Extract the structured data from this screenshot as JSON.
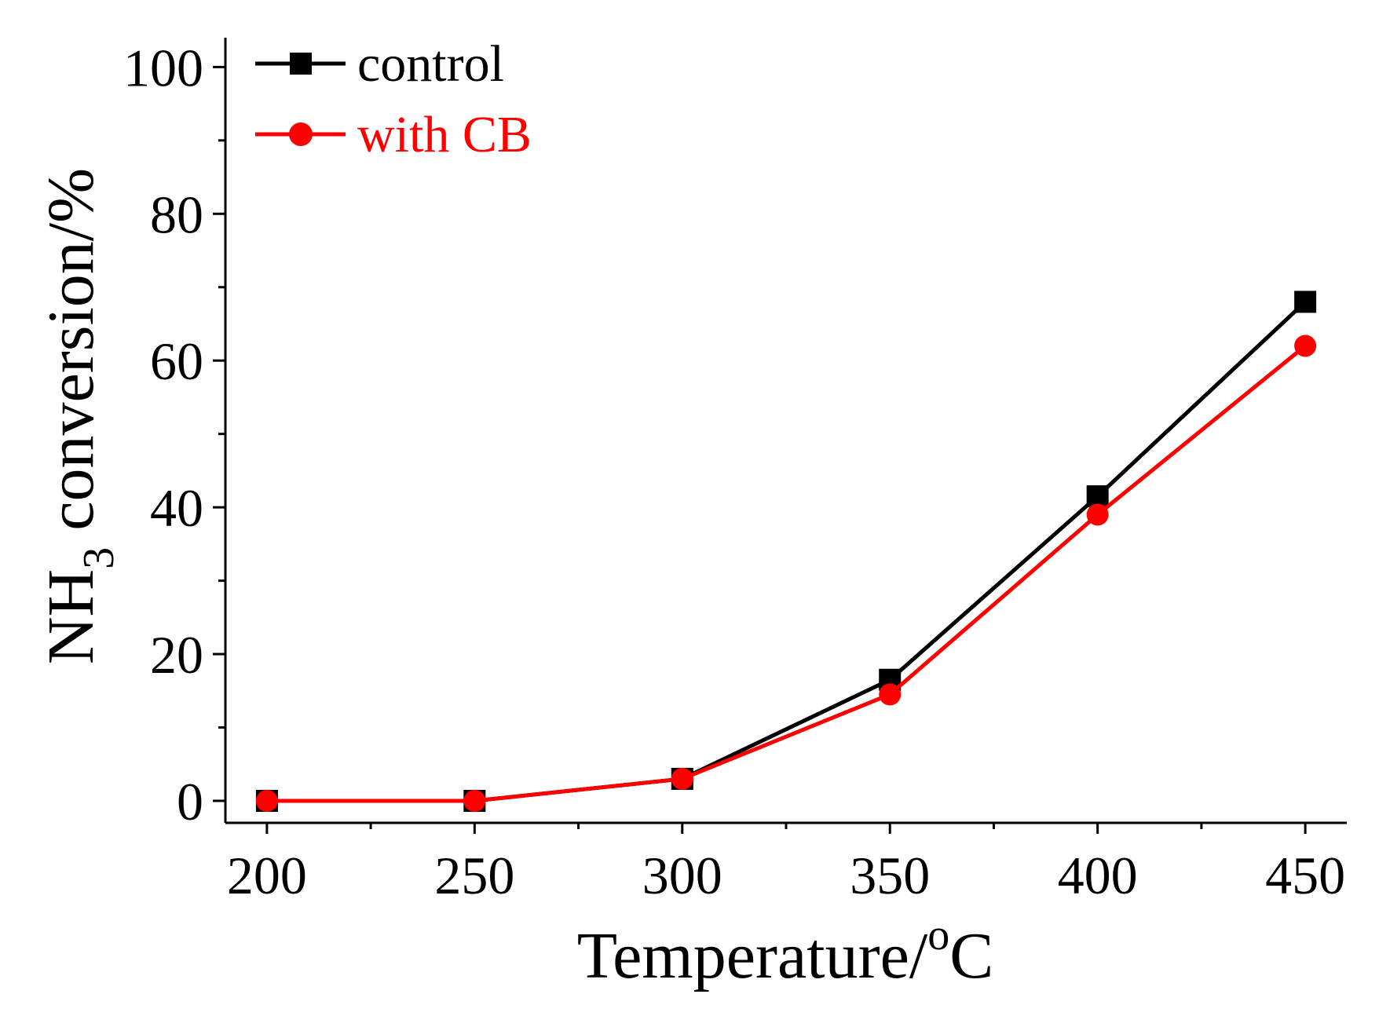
{
  "chart_data": {
    "type": "line",
    "title": "",
    "xlabel": "Temperature/",
    "xlabel_unit_sup": "o",
    "xlabel_unit": "C",
    "ylabel_main": "NH",
    "ylabel_sub": "3",
    "ylabel_rest": " conversion/%",
    "xlim": [
      190,
      460
    ],
    "ylim": [
      -3,
      104
    ],
    "x_ticks": [
      200,
      250,
      300,
      350,
      400,
      450
    ],
    "x_tick_labels": [
      "200",
      "250",
      "300",
      "350",
      "400",
      "450"
    ],
    "x_minor_ticks": [
      225,
      275,
      325,
      375,
      425
    ],
    "y_ticks": [
      0,
      20,
      40,
      60,
      80,
      100
    ],
    "y_tick_labels": [
      "0",
      "20",
      "40",
      "60",
      "80",
      "100"
    ],
    "y_minor_ticks": [
      10,
      30,
      50,
      70,
      90
    ],
    "grid": false,
    "legend_position": "top-left",
    "x": [
      200,
      250,
      300,
      350,
      400,
      450
    ],
    "series": [
      {
        "name": "control",
        "marker": "square",
        "color": "#000000",
        "values": [
          0,
          0,
          3,
          16.5,
          41.5,
          68
        ]
      },
      {
        "name": "with CB",
        "marker": "circle",
        "color": "#ff0000",
        "values": [
          0,
          0,
          3,
          14.5,
          39,
          62
        ]
      }
    ]
  }
}
